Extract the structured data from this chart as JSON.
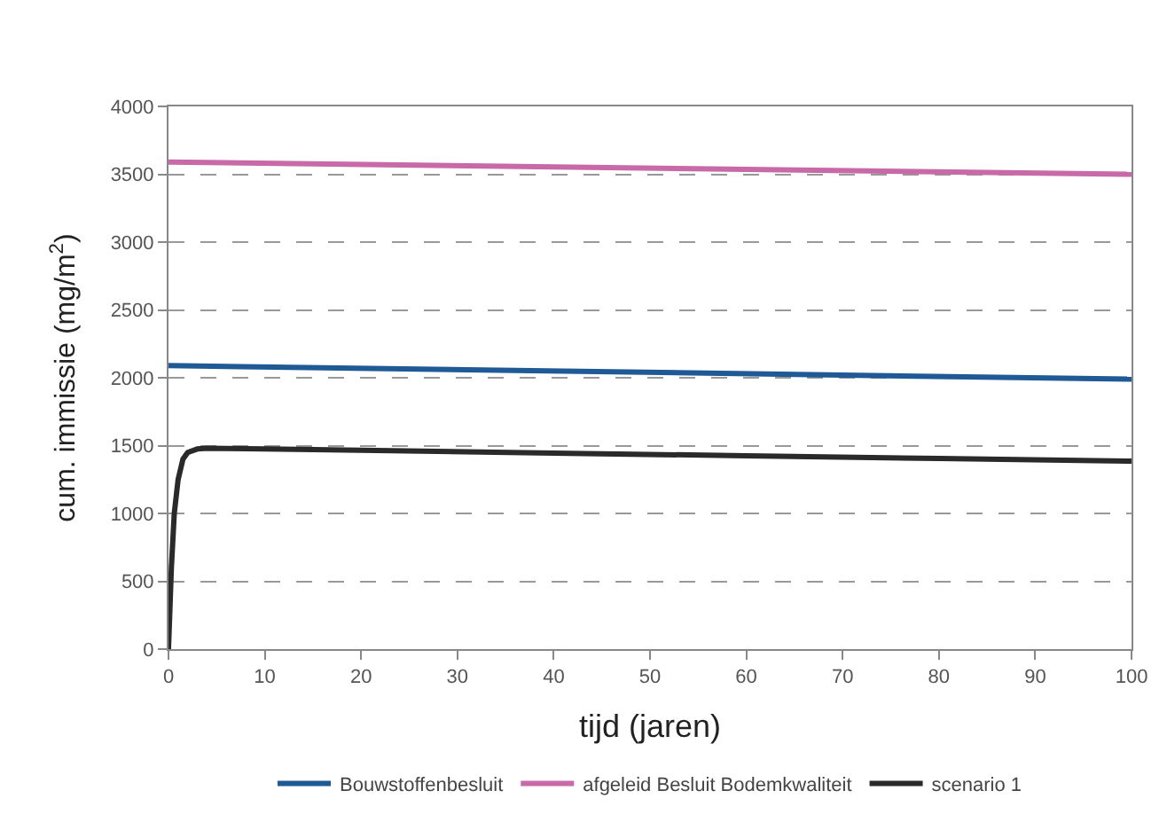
{
  "chart_data": {
    "type": "line",
    "xlabel": "tijd (jaren)",
    "ylabel": "cum. immissie (mg/m$^{2}$)",
    "xlim": [
      0,
      100
    ],
    "xticks": [
      0,
      10,
      20,
      30,
      40,
      50,
      60,
      70,
      80,
      90,
      100
    ],
    "ylim": [
      0,
      4000
    ],
    "yticks": [
      0,
      500,
      1000,
      1500,
      2000,
      2500,
      3000,
      3500,
      4000
    ],
    "grid": "y",
    "legend": "bottom",
    "marker": "none",
    "line_style": "solid",
    "series": [
      {
        "name": "Bouwstoffenbesluit",
        "color": "#1f5a96",
        "x": [
          0,
          100
        ],
        "values": [
          2090,
          1990
        ]
      },
      {
        "name": "afgeleid Besluit Bodemkwaliteit",
        "color": "#c86aa8",
        "x": [
          0,
          100
        ],
        "values": [
          3590,
          3500
        ]
      },
      {
        "name": "scenario 1",
        "color": "#2a2a2a",
        "x": [
          0,
          0.3,
          0.6,
          1,
          1.5,
          2,
          3,
          4,
          10,
          20,
          40,
          60,
          80,
          100
        ],
        "values": [
          0,
          600,
          1000,
          1250,
          1400,
          1450,
          1475,
          1480,
          1475,
          1465,
          1445,
          1425,
          1405,
          1385
        ]
      }
    ]
  }
}
